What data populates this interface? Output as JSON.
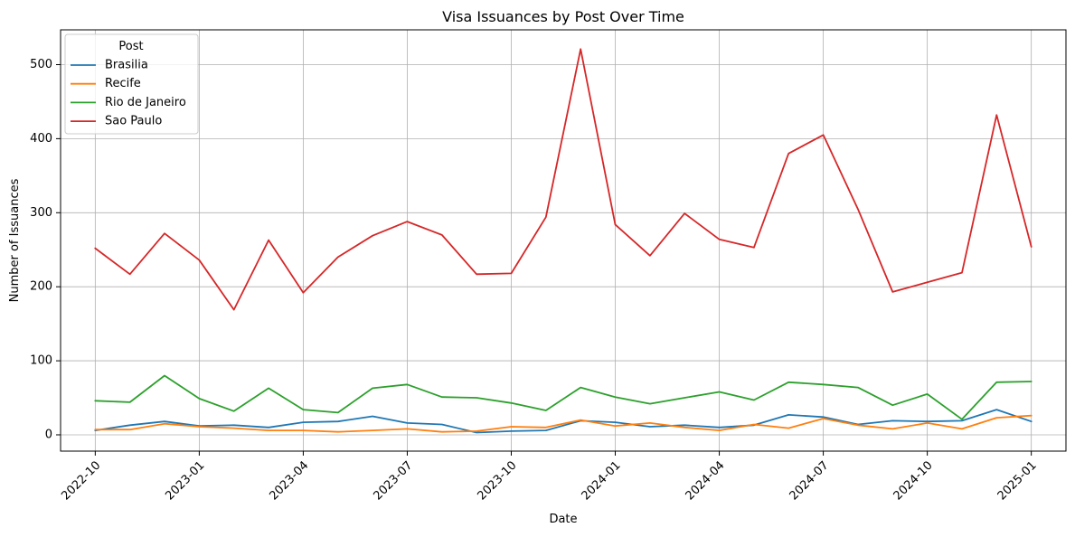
{
  "chart_data": {
    "type": "line",
    "title": "Visa Issuances by Post Over Time",
    "xlabel": "Date",
    "ylabel": "Number of Issuances",
    "x_tick_labels": [
      "2022-10",
      "2023-01",
      "2023-04",
      "2023-07",
      "2023-10",
      "2024-01",
      "2024-04",
      "2024-07",
      "2024-10",
      "2025-01"
    ],
    "y_tick_labels": [
      "0",
      "100",
      "200",
      "300",
      "400",
      "500"
    ],
    "y_ticks": [
      0,
      100,
      200,
      300,
      400,
      500
    ],
    "ylim": [
      -22,
      547
    ],
    "xlim": [
      "2022-09",
      "2025-02"
    ],
    "grid": true,
    "legend": {
      "title": "Post",
      "position": "top-left"
    },
    "x": [
      "2022-10",
      "2022-11",
      "2022-12",
      "2023-01",
      "2023-02",
      "2023-03",
      "2023-04",
      "2023-05",
      "2023-06",
      "2023-07",
      "2023-08",
      "2023-09",
      "2023-10",
      "2023-11",
      "2023-12",
      "2024-01",
      "2024-02",
      "2024-03",
      "2024-04",
      "2024-05",
      "2024-06",
      "2024-07",
      "2024-08",
      "2024-09",
      "2024-10",
      "2024-11",
      "2024-12",
      "2025-01"
    ],
    "series": [
      {
        "name": "Brasilia",
        "color": "#1f77b4",
        "values": [
          6,
          13,
          18,
          12,
          13,
          10,
          17,
          18,
          25,
          16,
          14,
          3,
          5,
          6,
          19,
          17,
          11,
          13,
          10,
          13,
          27,
          24,
          14,
          19,
          18,
          19,
          34,
          18
        ]
      },
      {
        "name": "Recife",
        "color": "#ff7f0e",
        "values": [
          7,
          7,
          15,
          11,
          9,
          6,
          6,
          4,
          6,
          8,
          4,
          5,
          11,
          10,
          20,
          12,
          16,
          10,
          6,
          14,
          9,
          22,
          13,
          8,
          16,
          8,
          23,
          26
        ]
      },
      {
        "name": "Rio de Janeiro",
        "color": "#2ca02c",
        "values": [
          46,
          44,
          80,
          49,
          32,
          63,
          34,
          30,
          63,
          68,
          51,
          50,
          43,
          33,
          64,
          51,
          42,
          50,
          58,
          47,
          71,
          68,
          64,
          40,
          55,
          21,
          71,
          72
        ]
      },
      {
        "name": "Sao Paulo",
        "color": "#d62728",
        "values": [
          252,
          217,
          272,
          236,
          169,
          263,
          192,
          240,
          269,
          288,
          270,
          217,
          218,
          294,
          521,
          284,
          242,
          299,
          264,
          253,
          380,
          405,
          305,
          193,
          206,
          219,
          432,
          254
        ]
      }
    ]
  }
}
